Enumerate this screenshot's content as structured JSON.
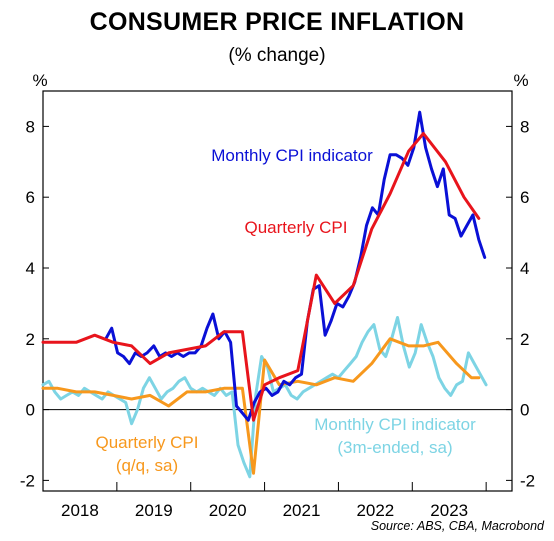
{
  "chart_data": {
    "type": "line",
    "title": "CONSUMER PRICE INFLATION",
    "subtitle": "(% change)",
    "ylabel_left": "%",
    "ylabel_right": "%",
    "ylim": [
      -2.3,
      9.0
    ],
    "yticks": [
      -2,
      0,
      2,
      4,
      6,
      8
    ],
    "xlim": [
      2017.5,
      2023.85
    ],
    "xtick_labels": [
      {
        "label": "2018",
        "x": 2018.0
      },
      {
        "label": "2019",
        "x": 2019.0
      },
      {
        "label": "2020",
        "x": 2020.0
      },
      {
        "label": "2021",
        "x": 2021.0
      },
      {
        "label": "2022",
        "x": 2022.0
      },
      {
        "label": "2023",
        "x": 2023.0
      }
    ],
    "year_dividers": [
      2018.5,
      2019.5,
      2020.5,
      2021.5,
      2022.5,
      2023.5
    ],
    "source": "Source: ABS, CBA, Macrobond",
    "series": [
      {
        "name": "Monthly CPI indicator",
        "color": "#0a10d6",
        "label_lines": [
          "Monthly CPI indicator"
        ],
        "points": [
          [
            2018.35,
            2.0
          ],
          [
            2018.43,
            2.3
          ],
          [
            2018.51,
            1.6
          ],
          [
            2018.59,
            1.5
          ],
          [
            2018.67,
            1.3
          ],
          [
            2018.75,
            1.6
          ],
          [
            2018.83,
            1.5
          ],
          [
            2018.91,
            1.6
          ],
          [
            2019.0,
            1.8
          ],
          [
            2019.08,
            1.5
          ],
          [
            2019.16,
            1.6
          ],
          [
            2019.24,
            1.5
          ],
          [
            2019.32,
            1.6
          ],
          [
            2019.4,
            1.5
          ],
          [
            2019.48,
            1.6
          ],
          [
            2019.56,
            1.6
          ],
          [
            2019.64,
            1.8
          ],
          [
            2019.72,
            2.3
          ],
          [
            2019.8,
            2.7
          ],
          [
            2019.88,
            2.0
          ],
          [
            2019.96,
            2.2
          ],
          [
            2020.04,
            1.9
          ],
          [
            2020.12,
            0.1
          ],
          [
            2020.2,
            -0.1
          ],
          [
            2020.28,
            -0.3
          ],
          [
            2020.36,
            0.2
          ],
          [
            2020.44,
            0.5
          ],
          [
            2020.52,
            0.6
          ],
          [
            2020.6,
            0.4
          ],
          [
            2020.68,
            0.5
          ],
          [
            2020.76,
            0.8
          ],
          [
            2020.84,
            0.7
          ],
          [
            2020.92,
            0.9
          ],
          [
            2021.0,
            1.0
          ],
          [
            2021.08,
            2.5
          ],
          [
            2021.16,
            3.4
          ],
          [
            2021.24,
            3.5
          ],
          [
            2021.32,
            2.1
          ],
          [
            2021.4,
            2.5
          ],
          [
            2021.48,
            3.0
          ],
          [
            2021.56,
            2.9
          ],
          [
            2021.64,
            3.2
          ],
          [
            2021.72,
            3.6
          ],
          [
            2021.8,
            4.3
          ],
          [
            2021.88,
            5.2
          ],
          [
            2021.96,
            5.7
          ],
          [
            2022.04,
            5.5
          ],
          [
            2022.12,
            6.5
          ],
          [
            2022.2,
            7.2
          ],
          [
            2022.28,
            7.2
          ],
          [
            2022.36,
            7.1
          ],
          [
            2022.44,
            6.9
          ],
          [
            2022.52,
            7.4
          ],
          [
            2022.6,
            8.4
          ],
          [
            2022.68,
            7.4
          ],
          [
            2022.76,
            6.8
          ],
          [
            2022.84,
            6.3
          ],
          [
            2022.92,
            6.8
          ],
          [
            2023.0,
            5.5
          ],
          [
            2023.08,
            5.4
          ],
          [
            2023.16,
            4.9
          ],
          [
            2023.24,
            5.2
          ],
          [
            2023.32,
            5.5
          ],
          [
            2023.4,
            4.8
          ],
          [
            2023.48,
            4.3
          ]
        ]
      },
      {
        "name": "Quarterly CPI",
        "color": "#e8141c",
        "label_lines": [
          "Quarterly CPI"
        ],
        "points": [
          [
            2017.5,
            1.9
          ],
          [
            2017.75,
            1.9
          ],
          [
            2017.95,
            1.9
          ],
          [
            2018.2,
            2.1
          ],
          [
            2018.45,
            1.9
          ],
          [
            2018.7,
            1.8
          ],
          [
            2018.95,
            1.3
          ],
          [
            2019.2,
            1.6
          ],
          [
            2019.45,
            1.7
          ],
          [
            2019.7,
            1.8
          ],
          [
            2019.95,
            2.2
          ],
          [
            2020.2,
            2.2
          ],
          [
            2020.35,
            -0.3
          ],
          [
            2020.5,
            0.7
          ],
          [
            2020.7,
            0.9
          ],
          [
            2020.95,
            1.1
          ],
          [
            2021.2,
            3.8
          ],
          [
            2021.45,
            3.0
          ],
          [
            2021.7,
            3.5
          ],
          [
            2021.95,
            5.1
          ],
          [
            2022.2,
            6.1
          ],
          [
            2022.45,
            7.3
          ],
          [
            2022.65,
            7.8
          ],
          [
            2022.95,
            7.0
          ],
          [
            2023.2,
            6.0
          ],
          [
            2023.4,
            5.4
          ]
        ]
      },
      {
        "name": "Quarterly CPI (q/q, sa)",
        "color": "#f7981d",
        "label_lines": [
          "Quarterly CPI",
          "(q/q, sa)"
        ],
        "points": [
          [
            2017.5,
            0.6
          ],
          [
            2017.7,
            0.6
          ],
          [
            2017.95,
            0.5
          ],
          [
            2018.2,
            0.5
          ],
          [
            2018.45,
            0.4
          ],
          [
            2018.7,
            0.3
          ],
          [
            2018.95,
            0.4
          ],
          [
            2019.2,
            0.1
          ],
          [
            2019.45,
            0.5
          ],
          [
            2019.7,
            0.5
          ],
          [
            2019.95,
            0.6
          ],
          [
            2020.2,
            0.6
          ],
          [
            2020.35,
            -1.8
          ],
          [
            2020.5,
            1.4
          ],
          [
            2020.7,
            0.7
          ],
          [
            2020.95,
            0.8
          ],
          [
            2021.2,
            0.7
          ],
          [
            2021.45,
            0.9
          ],
          [
            2021.7,
            0.8
          ],
          [
            2021.95,
            1.3
          ],
          [
            2022.2,
            2.0
          ],
          [
            2022.45,
            1.8
          ],
          [
            2022.65,
            1.8
          ],
          [
            2022.85,
            1.9
          ],
          [
            2023.1,
            1.3
          ],
          [
            2023.3,
            0.9
          ],
          [
            2023.4,
            0.9
          ]
        ]
      },
      {
        "name": "Monthly CPI indicator (3m-ended, sa)",
        "color": "#7dd4e4",
        "label_lines": [
          "Monthly CPI indicator",
          "(3m-ended, sa)"
        ],
        "points": [
          [
            2017.5,
            0.7
          ],
          [
            2017.58,
            0.8
          ],
          [
            2017.66,
            0.5
          ],
          [
            2017.74,
            0.3
          ],
          [
            2017.82,
            0.4
          ],
          [
            2017.9,
            0.5
          ],
          [
            2017.98,
            0.4
          ],
          [
            2018.06,
            0.6
          ],
          [
            2018.14,
            0.5
          ],
          [
            2018.22,
            0.4
          ],
          [
            2018.3,
            0.3
          ],
          [
            2018.38,
            0.5
          ],
          [
            2018.46,
            0.4
          ],
          [
            2018.54,
            0.3
          ],
          [
            2018.62,
            0.2
          ],
          [
            2018.7,
            -0.4
          ],
          [
            2018.78,
            0.0
          ],
          [
            2018.86,
            0.6
          ],
          [
            2018.94,
            0.9
          ],
          [
            2019.02,
            0.6
          ],
          [
            2019.1,
            0.3
          ],
          [
            2019.18,
            0.5
          ],
          [
            2019.26,
            0.6
          ],
          [
            2019.34,
            0.8
          ],
          [
            2019.42,
            0.9
          ],
          [
            2019.5,
            0.6
          ],
          [
            2019.58,
            0.5
          ],
          [
            2019.66,
            0.6
          ],
          [
            2019.74,
            0.5
          ],
          [
            2019.82,
            0.4
          ],
          [
            2019.9,
            0.6
          ],
          [
            2019.98,
            0.4
          ],
          [
            2020.06,
            0.5
          ],
          [
            2020.14,
            -1.0
          ],
          [
            2020.22,
            -1.5
          ],
          [
            2020.3,
            -1.9
          ],
          [
            2020.38,
            0.4
          ],
          [
            2020.46,
            1.5
          ],
          [
            2020.54,
            1.2
          ],
          [
            2020.62,
            0.5
          ],
          [
            2020.7,
            0.6
          ],
          [
            2020.78,
            0.7
          ],
          [
            2020.86,
            0.4
          ],
          [
            2020.94,
            0.3
          ],
          [
            2021.02,
            0.5
          ],
          [
            2021.1,
            0.6
          ],
          [
            2021.18,
            0.7
          ],
          [
            2021.26,
            0.8
          ],
          [
            2021.34,
            0.9
          ],
          [
            2021.42,
            1.0
          ],
          [
            2021.5,
            0.9
          ],
          [
            2021.58,
            1.1
          ],
          [
            2021.66,
            1.3
          ],
          [
            2021.74,
            1.5
          ],
          [
            2021.82,
            1.9
          ],
          [
            2021.9,
            2.2
          ],
          [
            2021.98,
            2.4
          ],
          [
            2022.06,
            1.7
          ],
          [
            2022.14,
            1.5
          ],
          [
            2022.22,
            2.0
          ],
          [
            2022.3,
            2.6
          ],
          [
            2022.38,
            1.8
          ],
          [
            2022.46,
            1.2
          ],
          [
            2022.54,
            1.6
          ],
          [
            2022.62,
            2.4
          ],
          [
            2022.7,
            1.9
          ],
          [
            2022.78,
            1.5
          ],
          [
            2022.86,
            0.9
          ],
          [
            2022.94,
            0.6
          ],
          [
            2023.02,
            0.4
          ],
          [
            2023.1,
            0.7
          ],
          [
            2023.18,
            0.8
          ],
          [
            2023.26,
            1.6
          ],
          [
            2023.34,
            1.3
          ],
          [
            2023.42,
            1.0
          ],
          [
            2023.5,
            0.7
          ]
        ]
      }
    ]
  }
}
